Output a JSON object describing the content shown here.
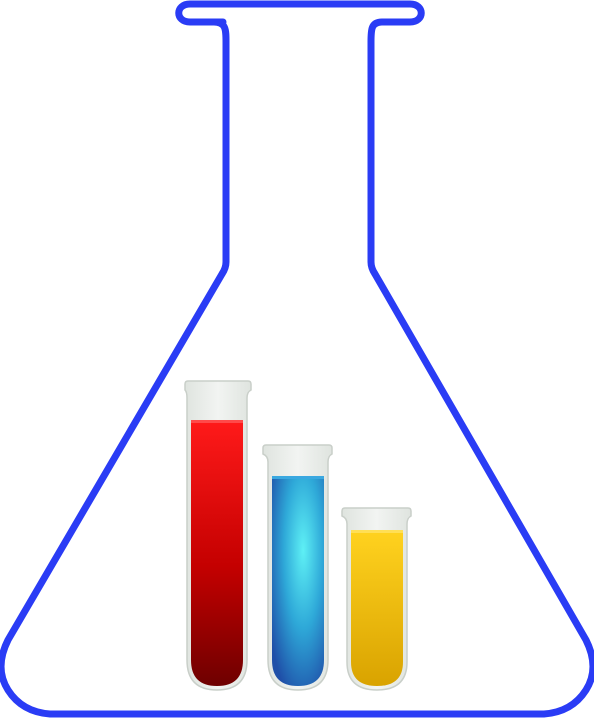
{
  "illustration": {
    "subject": "erlenmeyer-flask-with-test-tubes",
    "colors": {
      "flask_outline": "#2a3cf5",
      "red_liquid_top": "#ff1a1a",
      "red_liquid_bottom": "#6e0000",
      "blue_liquid_center": "#5ef0f5",
      "blue_liquid_edge": "#1f5fb0",
      "yellow_liquid_top": "#ffd21f",
      "yellow_liquid_bottom": "#d9a300",
      "tube_glass": "#e8ece8"
    },
    "test_tubes": [
      {
        "name": "red",
        "fill_level": 0.86
      },
      {
        "name": "blue",
        "fill_level": 0.95
      },
      {
        "name": "yellow",
        "fill_level": 0.95
      }
    ]
  }
}
